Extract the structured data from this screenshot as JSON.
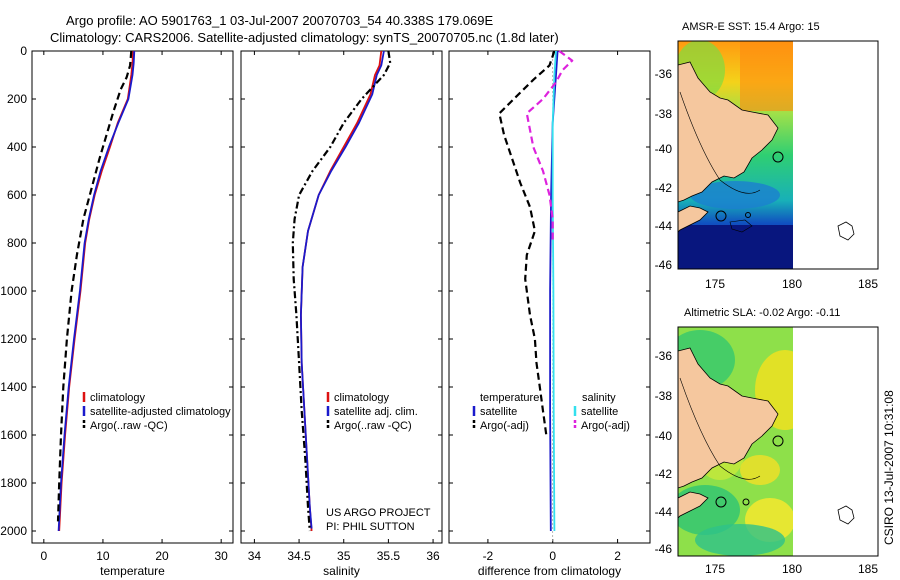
{
  "header": {
    "line1": "Argo profile: AO 5901763_1 03-Jul-2007 20070703_54 40.338S 179.069E",
    "line2": "Climatology: CARS2006. Satellite-adjusted climatology: synTS_20070705.nc (1.8d later)"
  },
  "colors": {
    "climatology": "#dd1111",
    "satellite": "#1a1acc",
    "argo": "#000000",
    "satellite_diff": "#33e0ee",
    "argo_adj_diff": "#dd22dd",
    "land": "#f5c79e"
  },
  "chart_data": [
    {
      "type": "line",
      "id": "temperature",
      "xlabel": "temperature",
      "xlim": [
        -2,
        32
      ],
      "ylim": [
        2050,
        0
      ],
      "xticks": [
        0,
        10,
        20,
        30
      ],
      "yticks": [
        0,
        200,
        400,
        600,
        800,
        1000,
        1200,
        1400,
        1600,
        1800,
        2000
      ],
      "legend": [
        "climatology",
        "satellite-adjusted climatology",
        "Argo(..raw -QC)"
      ],
      "series": [
        {
          "name": "climatology",
          "style": "solid",
          "color_key": "climatology",
          "points": [
            [
              15.1,
              0
            ],
            [
              15.0,
              50
            ],
            [
              14.8,
              100
            ],
            [
              14.2,
              200
            ],
            [
              12.5,
              300
            ],
            [
              11.2,
              400
            ],
            [
              9.8,
              500
            ],
            [
              8.6,
              600
            ],
            [
              7.7,
              700
            ],
            [
              7.0,
              800
            ],
            [
              6.2,
              1000
            ],
            [
              5.2,
              1200
            ],
            [
              4.3,
              1400
            ],
            [
              3.6,
              1600
            ],
            [
              3.0,
              1800
            ],
            [
              2.6,
              2000
            ]
          ]
        },
        {
          "name": "satellite-adjusted climatology",
          "style": "solid",
          "color_key": "satellite",
          "points": [
            [
              15.3,
              0
            ],
            [
              15.2,
              50
            ],
            [
              15.0,
              100
            ],
            [
              14.3,
              200
            ],
            [
              12.6,
              300
            ],
            [
              11.0,
              400
            ],
            [
              9.6,
              500
            ],
            [
              8.5,
              600
            ],
            [
              7.6,
              700
            ],
            [
              6.9,
              800
            ],
            [
              6.1,
              1000
            ],
            [
              5.1,
              1200
            ],
            [
              4.2,
              1400
            ],
            [
              3.5,
              1600
            ],
            [
              2.9,
              1800
            ],
            [
              2.5,
              2000
            ]
          ]
        },
        {
          "name": "Argo(..raw -QC)",
          "style": "dash",
          "color_key": "argo",
          "points": [
            [
              14.8,
              0
            ],
            [
              14.6,
              60
            ],
            [
              14.0,
              110
            ],
            [
              13.0,
              160
            ],
            [
              11.8,
              250
            ],
            [
              10.6,
              350
            ],
            [
              9.4,
              450
            ],
            [
              8.0,
              580
            ],
            [
              6.7,
              700
            ],
            [
              5.6,
              850
            ],
            [
              4.7,
              1000
            ],
            [
              3.9,
              1200
            ],
            [
              3.3,
              1400
            ],
            [
              2.9,
              1600
            ],
            [
              2.6,
              1800
            ],
            [
              2.4,
              1960
            ]
          ]
        }
      ]
    },
    {
      "type": "line",
      "id": "salinity",
      "xlabel": "salinity",
      "xlim": [
        33.85,
        36.1
      ],
      "ylim": [
        2050,
        0
      ],
      "xticks": [
        34,
        34.5,
        35,
        35.5,
        36
      ],
      "yticks": [
        0,
        200,
        400,
        600,
        800,
        1000,
        1200,
        1400,
        1600,
        1800,
        2000
      ],
      "legend": [
        "climatology",
        "satellite adj. clim.",
        "Argo(..raw -QC)"
      ],
      "annotation": [
        "US ARGO PROJECT",
        "PI: PHIL SUTTON"
      ],
      "series": [
        {
          "name": "climatology",
          "style": "solid",
          "color_key": "climatology",
          "points": [
            [
              35.42,
              0
            ],
            [
              35.4,
              60
            ],
            [
              35.35,
              100
            ],
            [
              35.3,
              180
            ],
            [
              35.15,
              300
            ],
            [
              35.0,
              400
            ],
            [
              34.85,
              500
            ],
            [
              34.72,
              600
            ],
            [
              34.6,
              750
            ],
            [
              34.54,
              900
            ],
            [
              34.52,
              1100
            ],
            [
              34.53,
              1300
            ],
            [
              34.56,
              1500
            ],
            [
              34.59,
              1700
            ],
            [
              34.62,
              1900
            ],
            [
              34.64,
              2000
            ]
          ]
        },
        {
          "name": "satellite adj. clim.",
          "style": "solid",
          "color_key": "satellite",
          "points": [
            [
              35.45,
              0
            ],
            [
              35.42,
              60
            ],
            [
              35.37,
              100
            ],
            [
              35.32,
              180
            ],
            [
              35.17,
              300
            ],
            [
              35.02,
              400
            ],
            [
              34.86,
              500
            ],
            [
              34.72,
              600
            ],
            [
              34.6,
              750
            ],
            [
              34.54,
              900
            ],
            [
              34.52,
              1100
            ],
            [
              34.53,
              1300
            ],
            [
              34.56,
              1500
            ],
            [
              34.59,
              1700
            ],
            [
              34.62,
              1900
            ],
            [
              34.64,
              1990
            ]
          ]
        },
        {
          "name": "Argo(..raw -QC)",
          "style": "dashdot",
          "color_key": "argo",
          "points": [
            [
              35.5,
              0
            ],
            [
              35.52,
              50
            ],
            [
              35.45,
              100
            ],
            [
              35.2,
              200
            ],
            [
              35.0,
              300
            ],
            [
              34.85,
              400
            ],
            [
              34.65,
              500
            ],
            [
              34.5,
              600
            ],
            [
              34.45,
              700
            ],
            [
              34.43,
              800
            ],
            [
              34.44,
              950
            ],
            [
              34.47,
              1100
            ],
            [
              34.5,
              1300
            ],
            [
              34.53,
              1500
            ],
            [
              34.57,
              1700
            ],
            [
              34.6,
              1900
            ],
            [
              34.62,
              2000
            ]
          ]
        }
      ]
    },
    {
      "type": "line",
      "id": "difference",
      "xlabel": "difference from climatology",
      "xlim": [
        -3.2,
        3.0
      ],
      "ylim": [
        2050,
        0
      ],
      "xticks": [
        -2,
        0,
        2
      ],
      "yticks": [
        0,
        200,
        400,
        600,
        800,
        1000,
        1200,
        1400,
        1600,
        1800,
        2000
      ],
      "legend_titles": [
        "temperature",
        "salinity"
      ],
      "legend_left": [
        "satellite",
        "Argo(-adj)"
      ],
      "legend_right": [
        "satellite",
        "Argo(-adj)"
      ],
      "series": [
        {
          "name": "temperature satellite",
          "style": "solid",
          "color_key": "satellite",
          "points": [
            [
              0.15,
              0
            ],
            [
              0.1,
              100
            ],
            [
              0.0,
              300
            ],
            [
              -0.05,
              600
            ],
            [
              -0.08,
              1000
            ],
            [
              -0.08,
              1500
            ],
            [
              -0.06,
              2000
            ]
          ]
        },
        {
          "name": "temperature Argo(-adj)",
          "style": "dash",
          "color_key": "argo",
          "points": [
            [
              0.05,
              0
            ],
            [
              -0.1,
              60
            ],
            [
              -0.6,
              120
            ],
            [
              -1.2,
              200
            ],
            [
              -1.65,
              260
            ],
            [
              -1.5,
              350
            ],
            [
              -1.25,
              450
            ],
            [
              -1.0,
              550
            ],
            [
              -0.7,
              650
            ],
            [
              -0.55,
              750
            ],
            [
              -0.8,
              850
            ],
            [
              -0.85,
              950
            ],
            [
              -0.7,
              1100
            ],
            [
              -0.55,
              1200
            ],
            [
              -0.5,
              1300
            ],
            [
              -0.4,
              1400
            ],
            [
              -0.3,
              1500
            ],
            [
              -0.2,
              1600
            ]
          ]
        },
        {
          "name": "salinity satellite",
          "style": "solid",
          "color_key": "satellite_diff",
          "points": [
            [
              0.1,
              0
            ],
            [
              0.05,
              100
            ],
            [
              0.0,
              300
            ],
            [
              0.0,
              600
            ],
            [
              0.02,
              1000
            ],
            [
              0.03,
              1500
            ],
            [
              0.05,
              2000
            ]
          ]
        },
        {
          "name": "salinity Argo(-adj)",
          "style": "dash",
          "color_key": "argo_adj_diff",
          "points": [
            [
              0.2,
              0
            ],
            [
              0.6,
              40
            ],
            [
              0.3,
              80
            ],
            [
              0.1,
              130
            ],
            [
              -0.3,
              200
            ],
            [
              -0.8,
              260
            ],
            [
              -0.6,
              400
            ],
            [
              -0.3,
              500
            ],
            [
              -0.1,
              600
            ],
            [
              0.0,
              700
            ],
            [
              0.0,
              800
            ]
          ]
        }
      ]
    }
  ],
  "maps": {
    "sst": {
      "title": "AMSR-E SST: 15.4 Argo: 15",
      "lat_ticks": [
        "-36",
        "-38",
        "-40",
        "-42",
        "-44",
        "-46"
      ],
      "lon_ticks": [
        "175",
        "180",
        "185"
      ]
    },
    "sla": {
      "title": "Altimetric SLA: -0.02 Argo: -0.11",
      "lat_ticks": [
        "-36",
        "-38",
        "-40",
        "-42",
        "-44",
        "-46"
      ],
      "lon_ticks": [
        "175",
        "180",
        "185"
      ]
    }
  },
  "footer": {
    "stamp": "CSIRO 13-Jul-2007 10:31:08"
  }
}
